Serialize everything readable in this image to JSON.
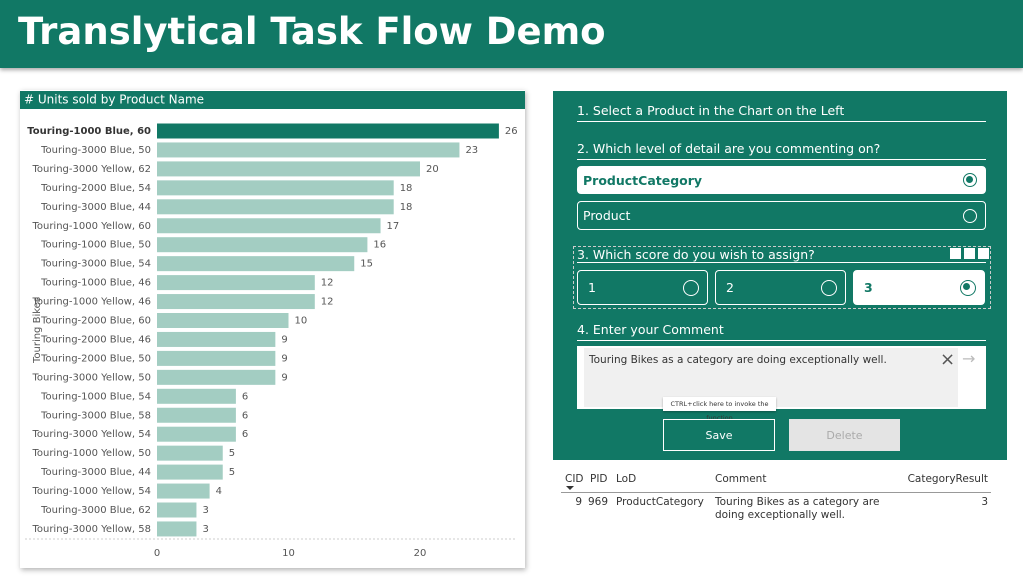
{
  "header": {
    "title": "Translytical Task Flow Demo"
  },
  "chart_data": {
    "type": "hbar",
    "title": "# Units sold by Product Name",
    "ylabel": "Touring Bikes",
    "categories": [
      "Touring-1000 Blue, 60",
      "Touring-3000 Blue, 50",
      "Touring-3000 Yellow, 62",
      "Touring-2000 Blue, 54",
      "Touring-3000 Blue, 44",
      "Touring-1000 Yellow, 60",
      "Touring-1000 Blue, 50",
      "Touring-3000 Blue, 54",
      "Touring-1000 Blue, 46",
      "Touring-1000 Yellow, 46",
      "Touring-2000 Blue, 60",
      "Touring-2000 Blue, 46",
      "Touring-2000 Blue, 50",
      "Touring-3000 Yellow, 50",
      "Touring-1000 Blue, 54",
      "Touring-3000 Blue, 58",
      "Touring-3000 Yellow, 54",
      "Touring-1000 Yellow, 50",
      "Touring-3000 Blue, 44",
      "Touring-1000 Yellow, 54",
      "Touring-3000 Blue, 62",
      "Touring-3000 Yellow, 58"
    ],
    "values": [
      26,
      23,
      20,
      18,
      18,
      17,
      16,
      15,
      12,
      12,
      10,
      9,
      9,
      9,
      6,
      6,
      6,
      5,
      5,
      4,
      3,
      3
    ],
    "color": "#a3cdc2",
    "selected_index": 0,
    "selected_color": "#117865",
    "xlim": [
      0,
      27
    ],
    "xticks": [
      0,
      10,
      20
    ],
    "grid": false
  },
  "form": {
    "step1": "1. Select a Product in the Chart on the Left",
    "step2": "2. Which level of detail are you commenting on?",
    "lod_options": [
      "ProductCategory",
      "Product"
    ],
    "step3": "3. Which score do you wish to assign?",
    "scores": [
      "1",
      "2",
      "3"
    ],
    "step4": "4. Enter your Comment",
    "comment": "Touring Bikes as a category are doing exceptionally well.",
    "tooltip": "CTRL+click here to invoke the function",
    "save": "Save",
    "delete": "Delete"
  },
  "table": {
    "columns": [
      "CID",
      "PID",
      "LoD",
      "Comment",
      "CategoryResult"
    ],
    "rows": [
      [
        "9",
        "969",
        "ProductCategory",
        "Touring Bikes as a category are doing exceptionally well.",
        "3"
      ]
    ]
  }
}
